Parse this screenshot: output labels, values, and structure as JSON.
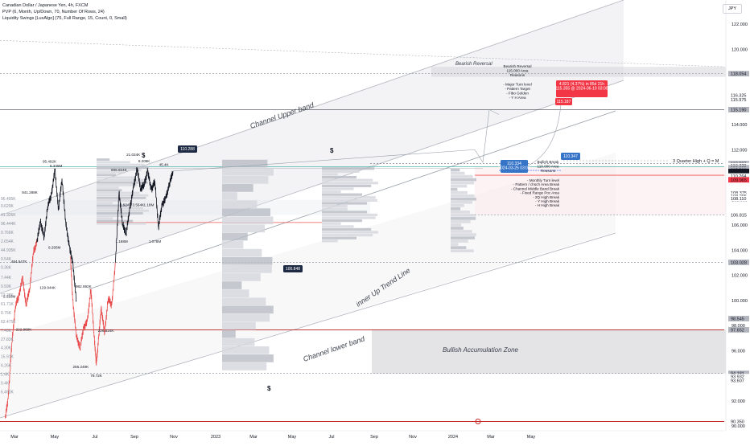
{
  "header": {
    "title": "Canadian Dollar / Japanese Yen, 4h, FXCM",
    "indicator1": "PVP (6, Month, Up/Down, 70, Number Of Rows, 24)",
    "indicator2": "Liquidity Swings [LuxAlgo] (75, Full Range, 15, Count, 0, Small)"
  },
  "currency_button": "JPY",
  "colors": {
    "bull": "#26a69a",
    "bear": "#ef5350",
    "price_line_dark": "#131722",
    "price_line_red": "#e84b4b",
    "accent_blue": "#2962ff",
    "tag_dark": "#1e2a43",
    "tag_red": "#f23645",
    "tag_blue": "#3674c8",
    "zone_gray": "#d8d9dd"
  },
  "chart_data": {
    "type": "line",
    "title": "Canadian Dollar / Japanese Yen, 4h, FXCM",
    "xlabel": "",
    "ylabel": "",
    "x_ticks": [
      "Mar",
      "May",
      "Jul",
      "Sep",
      "Nov",
      "2023",
      "Mar",
      "May",
      "Jul",
      "Sep",
      "Nov",
      "2024",
      "Mar",
      "May"
    ],
    "y_ticks": [
      122.0,
      120.0,
      118.0,
      116.0,
      114.0,
      112.0,
      110.0,
      108.0,
      106.0,
      104.0,
      102.0,
      100.0,
      98.0,
      96.0,
      94.0,
      92.0,
      90.0
    ],
    "ylim": [
      89.8,
      124.0
    ],
    "series": [
      {
        "color": "#e84b4b",
        "x": [
          "2022-02-20",
          "2022-03-05",
          "2022-03-20",
          "2022-04-05",
          "2022-04-20",
          "2022-05-05",
          "2022-05-20",
          "2022-06-05",
          "2022-06-20",
          "2022-07-05"
        ],
        "values": [
          90.6,
          92.2,
          96.5,
          99.6,
          100.4,
          101.8,
          99.6,
          101.0,
          103.8,
          104.6
        ]
      },
      {
        "color": "#131722",
        "x": [
          "2022-07-05",
          "2022-07-20",
          "2022-08-05",
          "2022-08-20",
          "2022-09-05",
          "2022-09-20",
          "2022-10-05",
          "2022-10-20",
          "2022-11-05",
          "2022-11-20",
          "2022-12-05",
          "2022-12-20"
        ],
        "values": [
          104.6,
          106.3,
          105.0,
          107.5,
          108.4,
          110.4,
          107.2,
          109.7,
          106.2,
          104.3,
          103.0,
          100.0
        ]
      },
      {
        "color": "#e84b4b",
        "x": [
          "2022-11-25",
          "2022-12-05",
          "2022-12-20",
          "2023-01-05",
          "2023-01-20",
          "2023-02-05",
          "2023-02-20",
          "2023-03-05",
          "2023-03-15",
          "2023-03-25",
          "2023-04-05",
          "2023-04-20",
          "2023-05-05",
          "2023-05-20",
          "2023-06-05"
        ],
        "values": [
          103.5,
          100.0,
          97.2,
          96.2,
          97.8,
          98.3,
          100.9,
          97.5,
          94.9,
          96.9,
          99.4,
          97.4,
          100.2,
          99.6,
          103.0
        ]
      },
      {
        "color": "#131722",
        "x": [
          "2023-06-05",
          "2023-06-20",
          "2023-07-05",
          "2023-07-20",
          "2023-08-05",
          "2023-08-20",
          "2023-09-05",
          "2023-09-20",
          "2023-10-05",
          "2023-10-20",
          "2023-11-05",
          "2023-11-20",
          "2023-12-05",
          "2023-12-20",
          "2024-01-05",
          "2024-01-20",
          "2024-02-05"
        ],
        "values": [
          103.0,
          108.6,
          106.1,
          105.3,
          107.3,
          108.9,
          110.5,
          108.9,
          109.2,
          110.3,
          108.8,
          109.5,
          105.8,
          107.6,
          108.1,
          109.2,
          110.3
        ]
      }
    ],
    "legend": "none",
    "grid": false
  },
  "price_tags": [
    {
      "label": "118.054",
      "value": 118.054,
      "kind": "gray"
    },
    {
      "label": "116.325",
      "value": 116.325,
      "kind": "plain"
    },
    {
      "label": "115.975",
      "value": 115.975,
      "kind": "plain"
    },
    {
      "label": "115.190",
      "value": 115.19,
      "kind": "gray"
    },
    {
      "label": "110.887",
      "value": 110.887,
      "kind": "gray"
    },
    {
      "label": "110.728",
      "value": 110.728,
      "kind": "plain"
    },
    {
      "label": "110.689",
      "value": 110.56,
      "kind": "gray"
    },
    {
      "label": "110.516",
      "value": 110.4,
      "kind": "gray"
    },
    {
      "label": "03:52:11",
      "value": 110.26,
      "kind": "dark"
    },
    {
      "label": "110.323",
      "value": 110.13,
      "kind": "dark"
    },
    {
      "label": "110.264",
      "value": 109.9,
      "kind": "plain"
    },
    {
      "label": "109.965",
      "value": 109.6,
      "kind": "red"
    },
    {
      "label": "108.375",
      "value": 108.55,
      "kind": "plain"
    },
    {
      "label": "108.295",
      "value": 108.3,
      "kind": "plain"
    },
    {
      "label": "108.110",
      "value": 108.1,
      "kind": "plain"
    },
    {
      "label": "106.815",
      "value": 106.815,
      "kind": "plain"
    },
    {
      "label": "103.028",
      "value": 103.028,
      "kind": "gray"
    },
    {
      "label": "98.545",
      "value": 98.545,
      "kind": "gray"
    },
    {
      "label": "97.652",
      "value": 97.652,
      "kind": "gray"
    },
    {
      "label": "94.181",
      "value": 94.181,
      "kind": "gray"
    },
    {
      "label": "93.932",
      "value": 93.93,
      "kind": "plain"
    },
    {
      "label": "93.607",
      "value": 93.607,
      "kind": "plain"
    },
    {
      "label": "90.350",
      "value": 90.35,
      "kind": "plain"
    }
  ],
  "annotations": {
    "channel_upper": "Channel Upper band",
    "channel_lower": "Channel lower band",
    "inner_trend": "inner Up Trend Line",
    "bullish_zone": "Bullish Accumulation Zone",
    "bearish_reversal": "Bearish Reversal",
    "three_quarter": "3 Quarter High + Q = M",
    "bearish_reasons": [
      "Bearish Reversal",
      "115.000 Area",
      "Reasons",
      "",
      "- Major Turn level",
      "- Pattern Target",
      "- Fibo Golden",
      "- Y H Area"
    ],
    "bullish_break": [
      "Bullish Break",
      "110.000 Area",
      "Reasons"
    ],
    "bullish_reasons": [
      "- Monthly Turn level",
      "- Pattern / chsch Area Break",
      "- Channel Middle Band Break",
      "- Fixed Range Poc Area",
      "- 2Q High Break",
      "- Y High Break",
      "- H High Break"
    ],
    "measure_line1": "4.821 (4.37%) in 85d 21h",
    "measure_line2": "115.355 @ 2024-06-19  03:00",
    "target_tag": "115.187",
    "entry_tag": "110.334",
    "entry_sub": "2024-03-25 03:00",
    "left_tag": "110.288",
    "mid_tag": "100.848",
    "right_tag": "110.347",
    "dollar": "$"
  },
  "volume_labels": [
    {
      "t": "95.492K",
      "v": 110.95,
      "d": "2022-08-28"
    },
    {
      "t": "5.345M",
      "v": 110.6,
      "d": "2022-09-25"
    },
    {
      "t": "841.288K",
      "v": 108.5,
      "d": "2022-06-05"
    },
    {
      "t": "9.295M",
      "v": 104.1,
      "d": "2022-09-18"
    },
    {
      "t": "484.547K",
      "v": 103.0,
      "d": "2022-04-20"
    },
    {
      "t": "129.944K",
      "v": 100.9,
      "d": "2022-08-20"
    },
    {
      "t": "2.318M",
      "v": 100.2,
      "d": "2022-03-10"
    },
    {
      "t": "222.960K",
      "v": 97.6,
      "d": "2022-05-10"
    },
    {
      "t": "982.692K",
      "v": 101.0,
      "d": "2023-01-20"
    },
    {
      "t": "226.624K",
      "v": 97.5,
      "d": "2023-04-25"
    },
    {
      "t": "256.249K",
      "v": 94.6,
      "d": "2023-01-08"
    },
    {
      "t": "79.72K",
      "v": 93.9,
      "d": "2023-03-15"
    },
    {
      "t": "906.924K",
      "v": 110.3,
      "d": "2023-06-20"
    },
    {
      "t": "21.034K",
      "v": 111.5,
      "d": "2023-08-20"
    },
    {
      "t": "8.205K",
      "v": 111.0,
      "d": "2023-10-05"
    },
    {
      "t": "45.4K",
      "v": 110.7,
      "d": "2023-12-28"
    },
    {
      "t": "1.924M",
      "v": 107.5,
      "d": "2023-07-20"
    },
    {
      "t": "3.564K",
      "v": 107.5,
      "d": "2023-09-10"
    },
    {
      "t": "1.18M",
      "v": 107.5,
      "d": "2023-10-25"
    },
    {
      "t": "1.168M",
      "v": 104.6,
      "d": "2023-07-01"
    },
    {
      "t": "1.078M",
      "v": 104.6,
      "d": "2023-11-20"
    }
  ],
  "left_edge_labels": [
    {
      "t": "96.495K",
      "v": 108.0
    },
    {
      "t": "0.620K",
      "v": 107.4
    },
    {
      "t": "41.326K",
      "v": 106.7
    },
    {
      "t": "96.444K",
      "v": 106.0
    },
    {
      "t": "0.766K",
      "v": 105.3
    },
    {
      "t": "2.654K",
      "v": 104.6
    },
    {
      "t": "44.935K",
      "v": 103.9
    },
    {
      "t": "0.54K",
      "v": 103.2
    },
    {
      "t": "0.36K",
      "v": 102.5
    },
    {
      "t": "7.44K",
      "v": 101.7
    },
    {
      "t": "0.59K",
      "v": 101.0
    },
    {
      "t": "13.38K",
      "v": 100.3
    },
    {
      "t": "61.71K",
      "v": 99.6
    },
    {
      "t": "0.75K",
      "v": 98.9
    },
    {
      "t": "62.475K",
      "v": 98.2
    },
    {
      "t": "7.46K",
      "v": 97.5
    },
    {
      "t": "27.83K",
      "v": 96.8
    },
    {
      "t": "4.30K",
      "v": 96.1
    },
    {
      "t": "15.91K",
      "v": 95.4
    },
    {
      "t": "6.26K",
      "v": 94.7
    },
    {
      "t": "1.4K",
      "v": 94.0
    },
    {
      "t": "0.4K",
      "v": 93.3
    },
    {
      "t": "6.490K",
      "v": 92.6
    }
  ]
}
